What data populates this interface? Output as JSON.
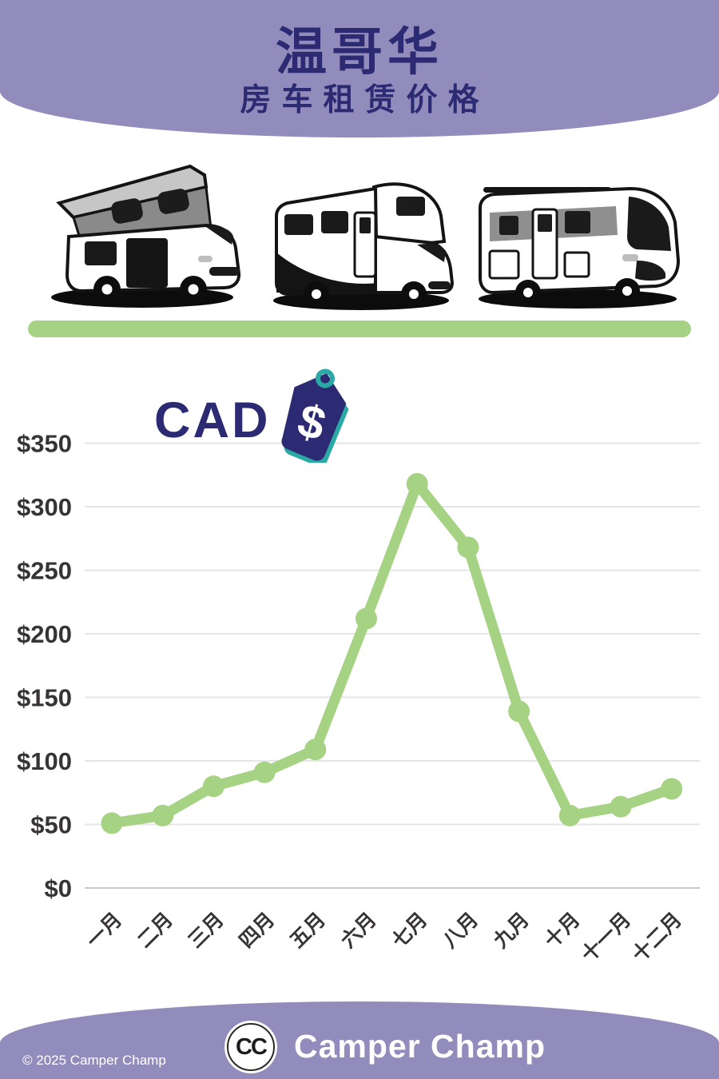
{
  "header": {
    "title": "温哥华",
    "subtitle": "房车租赁价格",
    "bg_color": "#918cbb",
    "text_color": "#2b2a72"
  },
  "hero": {
    "vehicle_icons": [
      "pop-top-campervan-icon",
      "alcove-motorhome-icon",
      "integrated-motorhome-icon"
    ],
    "divider_color": "#a5d383"
  },
  "currency_badge": {
    "label": "CAD",
    "icon": "price-tag-dollar-icon",
    "dollar_glyph": "$",
    "tag_color": "#2b2a72",
    "accent_color": "#2ba9a4"
  },
  "chart_data": {
    "type": "line",
    "title": "温哥华房车租赁价格 (CAD)",
    "categories": [
      "一月",
      "二月",
      "三月",
      "四月",
      "五月",
      "六月",
      "七月",
      "八月",
      "九月",
      "十月",
      "十一月",
      "十二月"
    ],
    "values": [
      51,
      57,
      80,
      91,
      109,
      212,
      318,
      268,
      139,
      57,
      64,
      78
    ],
    "ylim": [
      0,
      350
    ],
    "ytick_step": 50,
    "ytick_values": [
      350,
      300,
      250,
      200,
      150,
      100,
      50,
      0
    ],
    "ytick_labels": [
      "$350",
      "$300",
      "$250",
      "$200",
      "$150",
      "$100",
      "$50",
      "$0"
    ],
    "grid": true,
    "legend": "none",
    "line_color": "#a5d383",
    "marker": "circle",
    "axis_text_color": "#383435"
  },
  "footer": {
    "logo_text": "CC",
    "logo_icon": "camper-champ-logo",
    "brand": "Camper Champ",
    "copyright": "© 2025 Camper Champ",
    "bg_color": "#918cbb"
  }
}
